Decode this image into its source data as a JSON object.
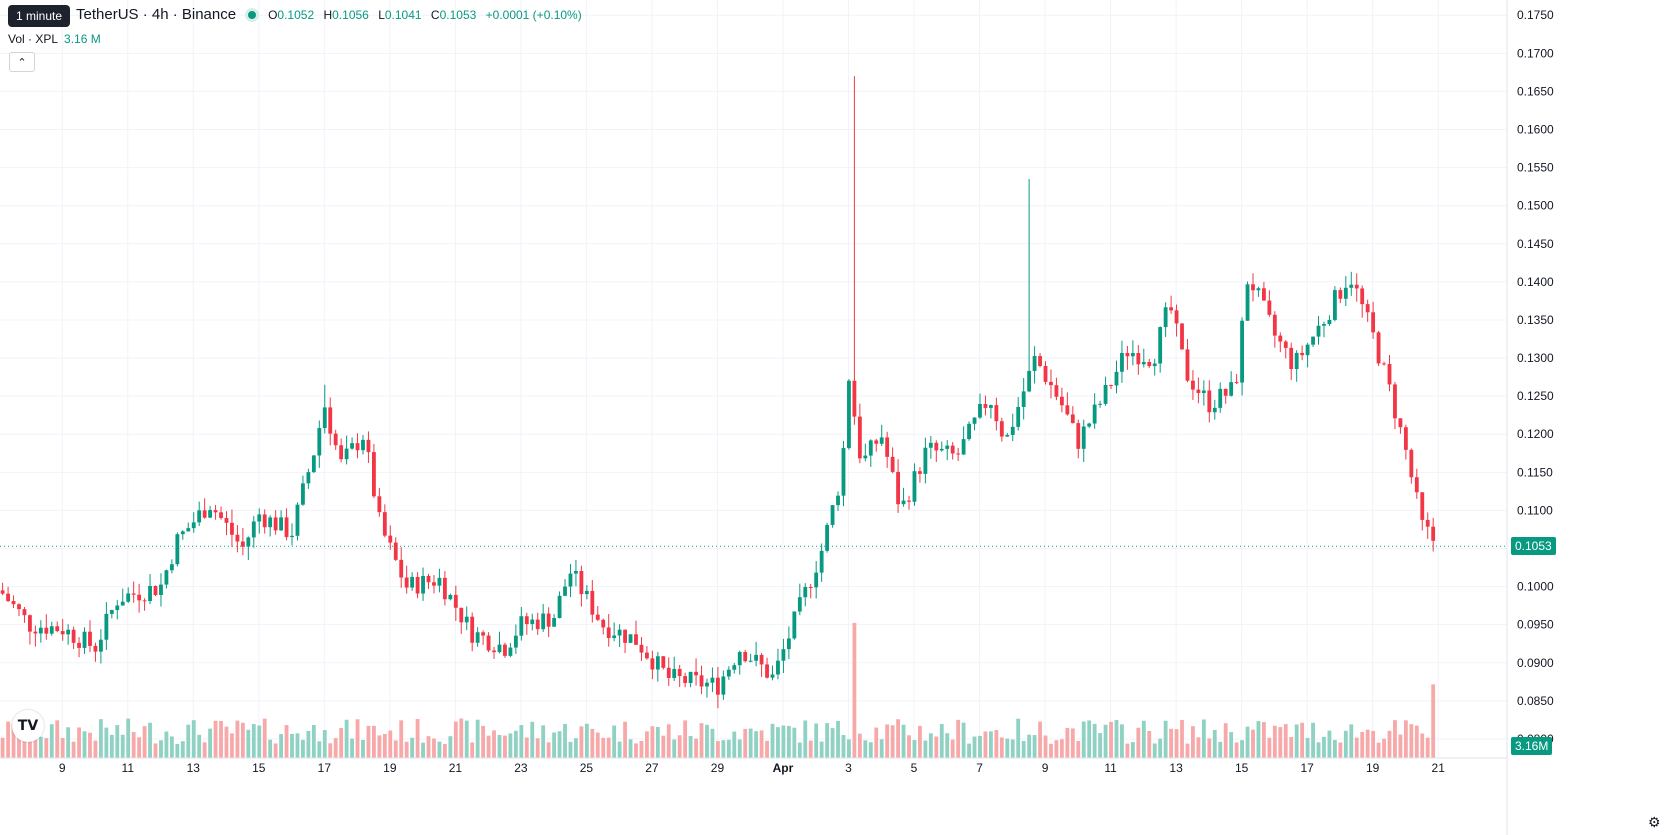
{
  "header": {
    "symbol": "TetherUS · 4h · Binance",
    "tooltip": "1 minute",
    "ohlc": {
      "o_label": "O",
      "o": "0.1052",
      "h_label": "H",
      "h": "0.1056",
      "l_label": "L",
      "l": "0.1041",
      "c_label": "C",
      "c": "0.1053",
      "change": "+0.0001 (+0.10%)"
    },
    "volume_label": "Vol · XPL",
    "volume_value": "3.16 M"
  },
  "badges": {
    "price": "0.1053",
    "volume": "3.16M"
  },
  "colors": {
    "up": "#089981",
    "down": "#f23645",
    "vol_up": "#8fd1c3",
    "vol_down": "#f7a9a9",
    "grid": "#f0f3fa",
    "axis_text": "#131722"
  },
  "icons": {
    "logo": "tradingview-logo-icon",
    "collapse": "chevron-up-icon",
    "settings": "gear-icon"
  },
  "chart_data": {
    "type": "candlestick",
    "interval": "4h",
    "y_ticks": [
      "0.0800",
      "0.0850",
      "0.0900",
      "0.0950",
      "0.1000",
      "0.1050",
      "0.1100",
      "0.1150",
      "0.1200",
      "0.1250",
      "0.1300",
      "0.1350",
      "0.1400",
      "0.1450",
      "0.1500",
      "0.1550",
      "0.1600",
      "0.1650",
      "0.1700",
      "0.1750"
    ],
    "ylim": [
      0.0775,
      0.177
    ],
    "x_ticks": [
      "9",
      "11",
      "13",
      "15",
      "17",
      "19",
      "21",
      "23",
      "25",
      "27",
      "29",
      "Apr",
      "3",
      "5",
      "7",
      "9",
      "11",
      "13",
      "15",
      "17",
      "19",
      "21"
    ],
    "x_tick_days": [
      -22,
      -20,
      -18,
      -16,
      -14,
      -12,
      -10,
      -8,
      -6,
      -4,
      -2,
      0,
      2,
      4,
      6,
      8,
      10,
      12,
      14,
      16,
      18,
      20
    ],
    "x_range_days": [
      -23.9,
      22.1
    ],
    "last_price": 0.1053,
    "volume_scale_max_m": 8.5,
    "volume_last_m": 3.16,
    "key_points": [
      {
        "day": -24,
        "price": 0.1
      },
      {
        "day": -23,
        "price": 0.095
      },
      {
        "day": -22,
        "price": 0.0945
      },
      {
        "day": -21,
        "price": 0.092
      },
      {
        "day": -20.3,
        "price": 0.0985
      },
      {
        "day": -19,
        "price": 0.1
      },
      {
        "day": -18.5,
        "price": 0.106
      },
      {
        "day": -17.5,
        "price": 0.111
      },
      {
        "day": -16.5,
        "price": 0.105
      },
      {
        "day": -16,
        "price": 0.1095
      },
      {
        "day": -15,
        "price": 0.107
      },
      {
        "day": -14.3,
        "price": 0.118
      },
      {
        "day": -14,
        "price": 0.124
      },
      {
        "day": -13.5,
        "price": 0.116
      },
      {
        "day": -12.8,
        "price": 0.12
      },
      {
        "day": -12.3,
        "price": 0.108
      },
      {
        "day": -11.5,
        "price": 0.1
      },
      {
        "day": -10.5,
        "price": 0.101
      },
      {
        "day": -9.5,
        "price": 0.094
      },
      {
        "day": -8.5,
        "price": 0.092
      },
      {
        "day": -8,
        "price": 0.095
      },
      {
        "day": -7,
        "price": 0.096
      },
      {
        "day": -6.5,
        "price": 0.102
      },
      {
        "day": -5.5,
        "price": 0.095
      },
      {
        "day": -4.5,
        "price": 0.093
      },
      {
        "day": -3.5,
        "price": 0.088
      },
      {
        "day": -2,
        "price": 0.087
      },
      {
        "day": -1.3,
        "price": 0.092
      },
      {
        "day": -0.3,
        "price": 0.088
      },
      {
        "day": 0.4,
        "price": 0.096
      },
      {
        "day": 1.2,
        "price": 0.105
      },
      {
        "day": 1.8,
        "price": 0.115
      },
      {
        "day": 2.0,
        "price": 0.128
      },
      {
        "day": 2.4,
        "price": 0.116
      },
      {
        "day": 3.0,
        "price": 0.12
      },
      {
        "day": 3.6,
        "price": 0.11
      },
      {
        "day": 4.4,
        "price": 0.118
      },
      {
        "day": 5.3,
        "price": 0.117
      },
      {
        "day": 6.3,
        "price": 0.125
      },
      {
        "day": 6.8,
        "price": 0.119
      },
      {
        "day": 7.7,
        "price": 0.13
      },
      {
        "day": 8.5,
        "price": 0.124
      },
      {
        "day": 9.0,
        "price": 0.119
      },
      {
        "day": 9.8,
        "price": 0.125
      },
      {
        "day": 10.5,
        "price": 0.131
      },
      {
        "day": 11.3,
        "price": 0.13
      },
      {
        "day": 11.8,
        "price": 0.137
      },
      {
        "day": 12.3,
        "price": 0.128
      },
      {
        "day": 13.0,
        "price": 0.124
      },
      {
        "day": 13.8,
        "price": 0.126
      },
      {
        "day": 14.2,
        "price": 0.141
      },
      {
        "day": 15.0,
        "price": 0.133
      },
      {
        "day": 15.6,
        "price": 0.129
      },
      {
        "day": 16.5,
        "price": 0.135
      },
      {
        "day": 17.3,
        "price": 0.141
      },
      {
        "day": 18.0,
        "price": 0.133
      },
      {
        "day": 18.5,
        "price": 0.126
      },
      {
        "day": 19.0,
        "price": 0.118
      },
      {
        "day": 19.5,
        "price": 0.108
      },
      {
        "day": 20.0,
        "price": 0.1053
      }
    ],
    "spikes": [
      {
        "day": 2.1,
        "high": 0.167,
        "volume_m": 5.8,
        "direction": "down"
      },
      {
        "day": 7.5,
        "high": 0.1535,
        "volume_m": 1.0,
        "direction": "up"
      },
      {
        "day": -14.0,
        "high": 0.1265,
        "volume_m": 1.2,
        "direction": "up"
      }
    ]
  }
}
